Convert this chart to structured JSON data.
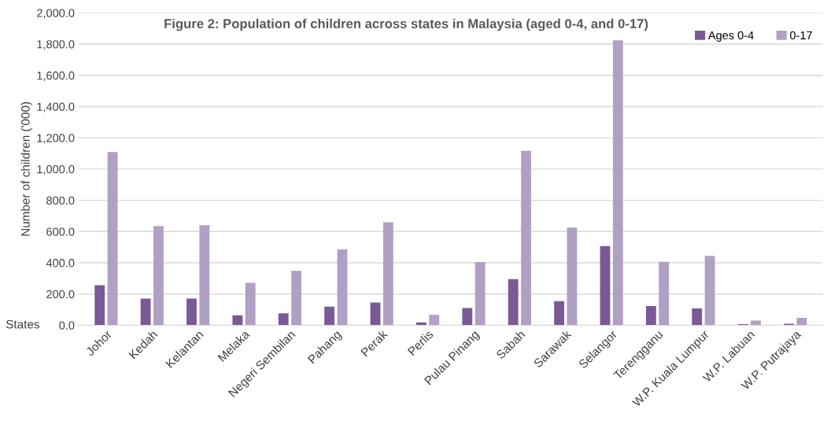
{
  "chart_data": {
    "type": "bar",
    "title": "Figure 2: Population of children across states in Malaysia (aged 0-4, and 0-17)",
    "xlabel": "States",
    "ylabel": "Number of children ('000)",
    "categories": [
      "Johor",
      "Kedah",
      "Kelantan",
      "Melaka",
      "Negeri Sembilan",
      "Pahang",
      "Perak",
      "Perlis",
      "Pulau Pinang",
      "Sabah",
      "Sarawak",
      "Selangor",
      "Terengganu",
      "W.P. Kuala Lumpur",
      "W.P. Labuan",
      "W.P. Putrajaya"
    ],
    "series": [
      {
        "name": "Ages 0-4",
        "color": "#7a5a96",
        "values": [
          257,
          171,
          171,
          64,
          76,
          119,
          146,
          18,
          111,
          296,
          155,
          507,
          123,
          108,
          7,
          10
        ]
      },
      {
        "name": "0-17",
        "color": "#b0a0c4",
        "values": [
          1109,
          635,
          640,
          272,
          348,
          486,
          660,
          67,
          405,
          1117,
          625,
          1824,
          407,
          444,
          30,
          47
        ]
      }
    ],
    "ylim": [
      0,
      2000
    ],
    "yticks": [
      {
        "value": 0,
        "label": "0.0"
      },
      {
        "value": 200,
        "label": "200.0"
      },
      {
        "value": 400,
        "label": "400.0"
      },
      {
        "value": 600,
        "label": "600.0"
      },
      {
        "value": 800,
        "label": "800.0"
      },
      {
        "value": 1000,
        "label": "1,000.0"
      },
      {
        "value": 1200,
        "label": "1,200.0"
      },
      {
        "value": 1400,
        "label": "1,400.0"
      },
      {
        "value": 1600,
        "label": "1,600.0"
      },
      {
        "value": 1800,
        "label": "1,800.0"
      },
      {
        "value": 2000,
        "label": "2,000.0"
      }
    ],
    "grid": "y",
    "legend": "top right"
  }
}
